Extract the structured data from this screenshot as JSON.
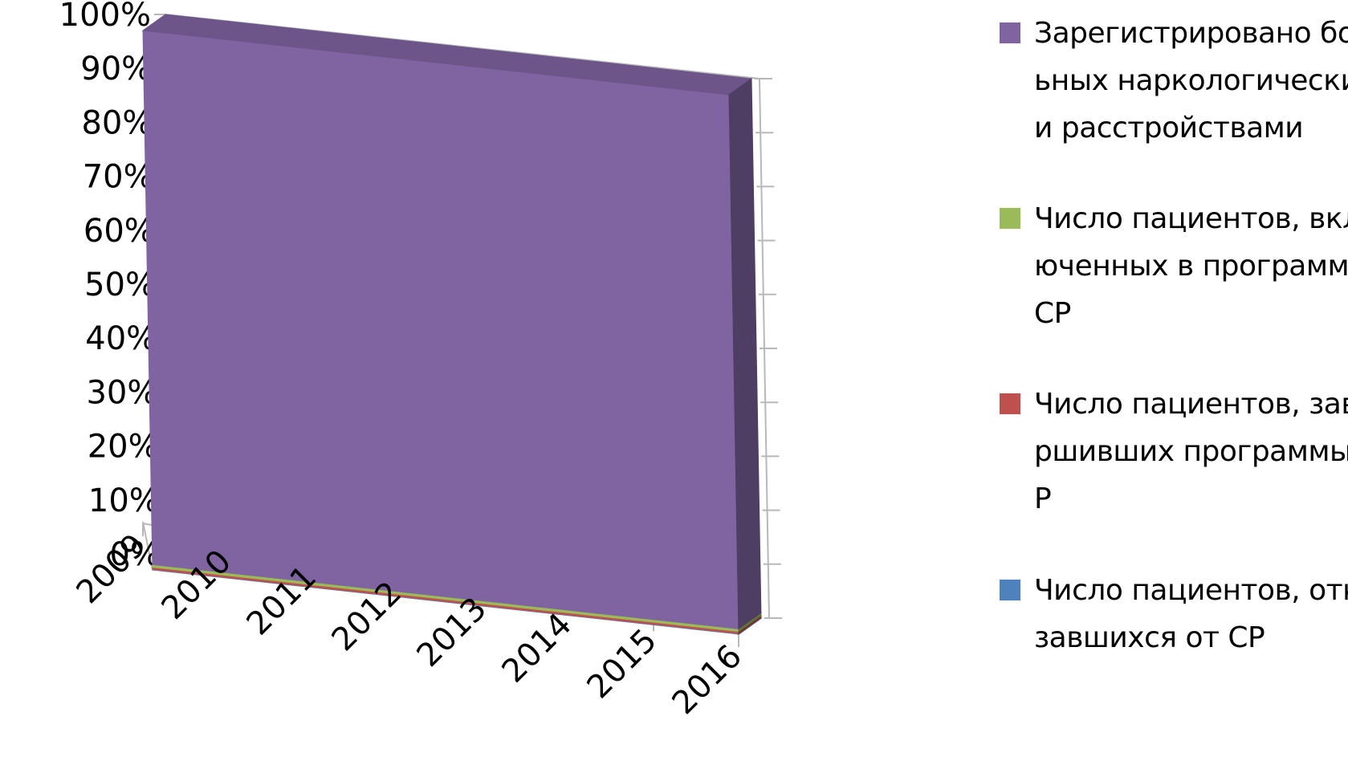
{
  "chart_data": {
    "type": "area",
    "stacking": "percent",
    "view": "3d",
    "categories": [
      "2009",
      "2010",
      "2011",
      "2012",
      "2013",
      "2014",
      "2015",
      "2016"
    ],
    "y_ticks": [
      "0%",
      "10%",
      "20%",
      "30%",
      "40%",
      "50%",
      "60%",
      "70%",
      "80%",
      "90%",
      "100%"
    ],
    "ylim": [
      0,
      100
    ],
    "legend_position": "right",
    "series": [
      {
        "name": "Число пациентов, отказавшихся от СР",
        "color": "#4F81BD",
        "values": [
          0.1,
          0.1,
          0.1,
          0.1,
          0.1,
          0.1,
          0.1,
          0.1
        ]
      },
      {
        "name": "Число пациентов, завершивших программы СР",
        "color": "#C0504D",
        "values": [
          0.4,
          0.4,
          0.4,
          0.4,
          0.4,
          0.4,
          0.4,
          0.4
        ]
      },
      {
        "name": "Число пациентов, включенных в программы СР",
        "color": "#9BBB59",
        "values": [
          0.5,
          0.5,
          0.5,
          0.5,
          0.5,
          0.5,
          0.5,
          0.5
        ]
      },
      {
        "name": "Зарегистрировано больных наркологическими расстройствами",
        "color": "#8064A2",
        "values": [
          99.0,
          99.0,
          99.0,
          99.0,
          99.0,
          99.0,
          99.0,
          99.0
        ]
      }
    ]
  }
}
